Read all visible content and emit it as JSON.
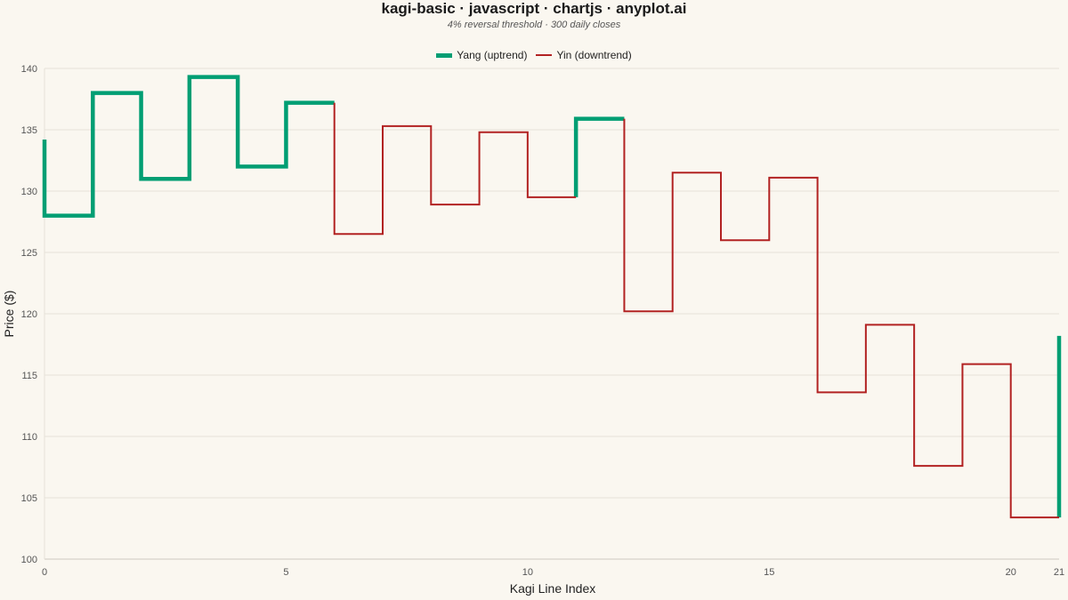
{
  "chart_data": {
    "type": "line",
    "title": "kagi-basic · javascript · chartjs · anyplot.ai",
    "subtitle": "4% reversal threshold · 300 daily closes",
    "xlabel": "Kagi Line Index",
    "ylabel": "Price ($)",
    "xlim": [
      0,
      21
    ],
    "ylim": [
      100,
      140
    ],
    "x_ticks": [
      0,
      5,
      10,
      15,
      20,
      21
    ],
    "y_ticks": [
      100,
      105,
      110,
      115,
      120,
      125,
      130,
      135,
      140
    ],
    "grid": true,
    "legend_position": "top",
    "series": [
      {
        "name": "Yang (uptrend)",
        "color": "#009e73",
        "style": "thick",
        "segments": [
          [
            [
              0,
              134.2
            ],
            [
              0,
              128.0
            ],
            [
              1,
              128.0
            ],
            [
              1,
              138.0
            ],
            [
              2,
              138.0
            ],
            [
              2,
              131.0
            ],
            [
              3,
              131.0
            ],
            [
              3,
              139.3
            ],
            [
              4,
              139.3
            ],
            [
              4,
              132.0
            ],
            [
              5,
              132.0
            ],
            [
              5,
              137.2
            ],
            [
              6,
              137.2
            ]
          ],
          [
            [
              11,
              129.5
            ],
            [
              11,
              135.9
            ],
            [
              12,
              135.9
            ]
          ],
          [
            [
              21,
              103.4
            ],
            [
              21,
              118.2
            ]
          ]
        ]
      },
      {
        "name": "Yin (downtrend)",
        "color": "#b22222",
        "style": "thin",
        "segments": [
          [
            [
              6,
              137.2
            ],
            [
              6,
              126.5
            ],
            [
              7,
              126.5
            ],
            [
              7,
              135.3
            ],
            [
              8,
              135.3
            ],
            [
              8,
              128.9
            ],
            [
              9,
              128.9
            ],
            [
              9,
              134.8
            ],
            [
              10,
              134.8
            ],
            [
              10,
              129.5
            ],
            [
              11,
              129.5
            ]
          ],
          [
            [
              12,
              135.9
            ],
            [
              12,
              120.2
            ],
            [
              13,
              120.2
            ],
            [
              13,
              131.5
            ],
            [
              14,
              131.5
            ],
            [
              14,
              126.0
            ],
            [
              15,
              126.0
            ],
            [
              15,
              131.1
            ],
            [
              16,
              131.1
            ],
            [
              16,
              113.6
            ],
            [
              17,
              113.6
            ],
            [
              17,
              119.1
            ],
            [
              18,
              119.1
            ],
            [
              18,
              107.6
            ],
            [
              19,
              107.6
            ],
            [
              19,
              115.9
            ],
            [
              20,
              115.9
            ],
            [
              20,
              103.4
            ],
            [
              21,
              103.4
            ]
          ]
        ]
      }
    ]
  }
}
